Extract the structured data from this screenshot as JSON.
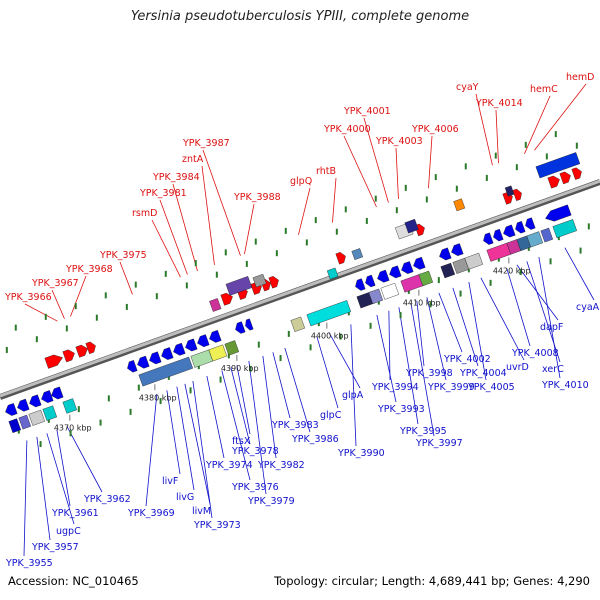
{
  "title": "Yersinia pseudotuberculosis YPIII, complete genome",
  "footer": {
    "accession": "Accession: NC_010465",
    "topology": "Topology: circular; Length: 4,689,441 bp; Genes: 4,290"
  },
  "colors": {
    "forward_label": "#dd1111",
    "reverse_label": "#1111cc",
    "backbone": "#888888",
    "tick_mark": "#2a7a2a",
    "forward_gene": "#ff0000",
    "reverse_gene": "#0000ee"
  },
  "scale_ticks": [
    {
      "label": "4370 kbp"
    },
    {
      "label": "4380 kbp"
    },
    {
      "label": "4390 kbp"
    },
    {
      "label": "4400 kbp"
    },
    {
      "label": "4410 kbp"
    },
    {
      "label": "4420 kbp"
    }
  ],
  "forward_labels": [
    "YPK_3966",
    "YPK_3967",
    "YPK_3968",
    "YPK_3975",
    "rsmD",
    "YPK_3981",
    "YPK_3984",
    "zntA",
    "YPK_3987",
    "YPK_3988",
    "glpQ",
    "rhtB",
    "YPK_4000",
    "YPK_4001",
    "YPK_4003",
    "YPK_4006",
    "cyaY",
    "YPK_4014",
    "hemC",
    "hemD"
  ],
  "reverse_labels": [
    "YPK_3955",
    "YPK_3957",
    "ugpC",
    "YPK_3961",
    "YPK_3962",
    "YPK_3969",
    "livF",
    "livG",
    "livM",
    "YPK_3973",
    "YPK_3974",
    "YPK_3976",
    "YPK_3978",
    "ftsX",
    "YPK_3979",
    "YPK_3982",
    "YPK_3983",
    "YPK_3986",
    "glpC",
    "glpA",
    "YPK_3990",
    "YPK_3993",
    "YPK_3994",
    "YPK_3995",
    "YPK_3997",
    "YPK_3998",
    "YPK_3999",
    "YPK_4002",
    "YPK_4004",
    "YPK_4005",
    "uvrD",
    "YPK_4008",
    "dapF",
    "xerC",
    "YPK_4010",
    "cyaA"
  ]
}
